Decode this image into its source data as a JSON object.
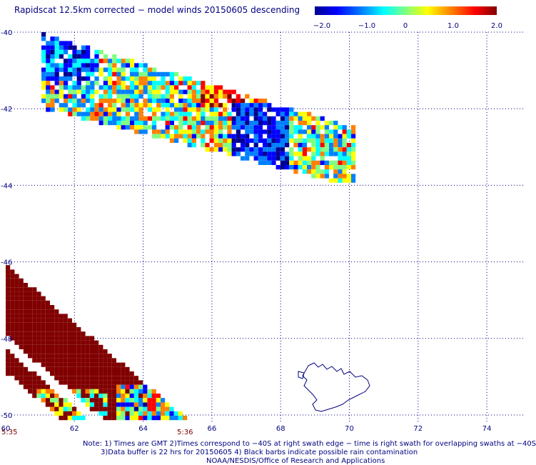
{
  "title": "Rapidscat 12.5km corrected − model winds 20150605 descending",
  "colorbar": {
    "labels": [
      "−2.0",
      "−1.0",
      "0",
      "1.0",
      "2.0"
    ],
    "min": -2.0,
    "max": 2.0,
    "colors": [
      "#00008f",
      "#0000ff",
      "#0080ff",
      "#00ffff",
      "#80ff80",
      "#ffff00",
      "#ff8000",
      "#ff0000",
      "#800000"
    ]
  },
  "axes": {
    "lat_labels": [
      "-40",
      "-42",
      "-44",
      "-46",
      "-48",
      "-50"
    ],
    "lon_labels": [
      "60",
      "62",
      "64",
      "66",
      "68",
      "70",
      "72",
      "74"
    ],
    "lat_range": [
      -40,
      -50
    ],
    "lon_range": [
      60,
      75
    ],
    "grid": "dotted"
  },
  "times": [
    "5:35",
    "5:36"
  ],
  "notes": [
    "Note: 1) Times are GMT 2)Times correspond to −40S at right swath edge − time is right swath for overlapping swaths at −40S",
    "3)Data buffer is 22 hrs for 20150605 4) Black barbs indicate possible rain contamination",
    "NOAA/NESDIS/Office of Research and Applications"
  ]
}
